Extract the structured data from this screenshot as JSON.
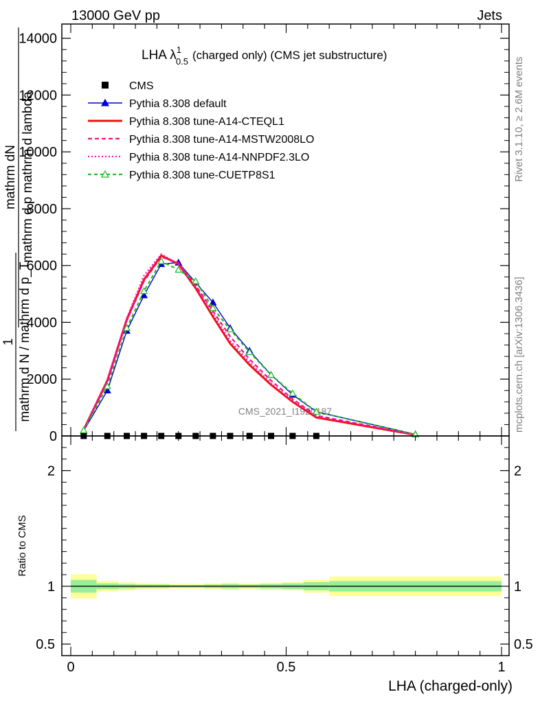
{
  "header": {
    "left": "13000 GeV pp",
    "right": "Jets"
  },
  "chart_data": [
    {
      "type": "line",
      "title": "LHA λ",
      "title_sup": "1",
      "title_sub": "0.5",
      "title_rest": "(charged only) (CMS jet substructure)",
      "ylabel_numerator": "mathrm dN",
      "ylabel_denominator": "mathrm d p mathrm d lambda",
      "ylabel_prefix": "1",
      "ylabel_prefix_denominator": "mathrm d N / mathrm d p_T",
      "xlim": [
        0,
        1
      ],
      "ylim": [
        0,
        14500
      ],
      "yticks": [
        0,
        2000,
        4000,
        6000,
        8000,
        10000,
        12000,
        14000
      ],
      "ytick_labels": [
        "0",
        "2000",
        "4000",
        "6000",
        "8000",
        "10000",
        "12000",
        "14000"
      ],
      "watermark": "CMS_2021_I1920187",
      "legend_position": "top-left",
      "series": [
        {
          "name": "CMS",
          "color": "#000000",
          "style": "data-points",
          "x": [
            0.03,
            0.085,
            0.13,
            0.17,
            0.21,
            0.25,
            0.29,
            0.33,
            0.37,
            0.415,
            0.465,
            0.515,
            0.57
          ],
          "y": [
            0,
            0,
            0,
            0,
            0,
            0,
            0,
            0,
            0,
            0,
            0,
            0,
            0
          ]
        },
        {
          "name": "Pythia 8.308 default",
          "color": "#0000cc",
          "style": "solid-triangle",
          "x": [
            0.03,
            0.085,
            0.13,
            0.17,
            0.21,
            0.25,
            0.29,
            0.33,
            0.37,
            0.415,
            0.465,
            0.515,
            0.57,
            0.8
          ],
          "y": [
            180,
            1600,
            3700,
            4950,
            6050,
            6100,
            5400,
            4700,
            3800,
            3000,
            2150,
            1450,
            850,
            60
          ]
        },
        {
          "name": "Pythia 8.308 tune-A14-CTEQL1",
          "color": "#ee1111",
          "style": "solid",
          "x": [
            0.03,
            0.085,
            0.13,
            0.17,
            0.21,
            0.25,
            0.29,
            0.33,
            0.37,
            0.415,
            0.465,
            0.515,
            0.57,
            0.8
          ],
          "y": [
            220,
            1950,
            4100,
            5500,
            6350,
            6050,
            5200,
            4200,
            3250,
            2500,
            1800,
            1200,
            650,
            40
          ]
        },
        {
          "name": "Pythia 8.308 tune-A14-MSTW2008LO",
          "color": "#ee1177",
          "style": "dashed",
          "x": [
            0.03,
            0.085,
            0.13,
            0.17,
            0.21,
            0.25,
            0.29,
            0.33,
            0.37,
            0.415,
            0.465,
            0.515,
            0.57,
            0.8
          ],
          "y": [
            210,
            1900,
            4050,
            5450,
            6300,
            6100,
            5300,
            4400,
            3500,
            2700,
            1950,
            1300,
            720,
            45
          ]
        },
        {
          "name": "Pythia 8.308 tune-A14-NNPDF2.3LO",
          "color": "#ff11cc",
          "style": "dotted",
          "x": [
            0.03,
            0.085,
            0.13,
            0.17,
            0.21,
            0.25,
            0.29,
            0.33,
            0.37,
            0.415,
            0.465,
            0.515,
            0.57,
            0.8
          ],
          "y": [
            230,
            2000,
            4150,
            5650,
            6400,
            6050,
            5250,
            4300,
            3350,
            2600,
            1850,
            1250,
            690,
            42
          ]
        },
        {
          "name": "Pythia 8.308 tune-CUETP8S1",
          "color": "#22bb22",
          "style": "dashed-open-triangle",
          "x": [
            0.03,
            0.085,
            0.13,
            0.17,
            0.21,
            0.25,
            0.29,
            0.33,
            0.37,
            0.415,
            0.465,
            0.515,
            0.57,
            0.8
          ],
          "y": [
            200,
            1750,
            3800,
            5100,
            6150,
            5850,
            5450,
            4500,
            3750,
            2950,
            2150,
            1500,
            850,
            55
          ]
        }
      ]
    },
    {
      "type": "area",
      "ylabel": "Ratio to CMS",
      "xlabel": "LHA (charged-only)",
      "xlim": [
        0,
        1
      ],
      "ylim": [
        0.4,
        2.3
      ],
      "yticks": [
        0.5,
        1,
        2
      ],
      "ytick_labels": [
        "0.5",
        "1",
        "2"
      ],
      "xticks": [
        0,
        0.5,
        1
      ],
      "xtick_labels": [
        "0",
        "0.5",
        "1"
      ],
      "reference_line": 1,
      "bin_edges": [
        0.0,
        0.06,
        0.11,
        0.15,
        0.19,
        0.23,
        0.27,
        0.31,
        0.35,
        0.39,
        0.44,
        0.49,
        0.54,
        0.6,
        1.0
      ],
      "band_inner": [
        [
          0.945,
          1.055
        ],
        [
          0.975,
          1.025
        ],
        [
          0.98,
          1.02
        ],
        [
          0.985,
          1.015
        ],
        [
          0.985,
          1.015
        ],
        [
          0.99,
          1.01
        ],
        [
          0.99,
          1.01
        ],
        [
          0.985,
          1.015
        ],
        [
          0.98,
          1.02
        ],
        [
          0.985,
          1.015
        ],
        [
          0.98,
          1.02
        ],
        [
          0.975,
          1.025
        ],
        [
          0.965,
          1.035
        ],
        [
          0.955,
          1.045
        ]
      ],
      "band_outer": [
        [
          0.895,
          1.105
        ],
        [
          0.955,
          1.045
        ],
        [
          0.965,
          1.035
        ],
        [
          0.975,
          1.025
        ],
        [
          0.975,
          1.025
        ],
        [
          0.98,
          1.02
        ],
        [
          0.98,
          1.02
        ],
        [
          0.975,
          1.025
        ],
        [
          0.97,
          1.03
        ],
        [
          0.975,
          1.025
        ],
        [
          0.97,
          1.03
        ],
        [
          0.965,
          1.035
        ],
        [
          0.945,
          1.055
        ],
        [
          0.915,
          1.085
        ]
      ],
      "band_colors": {
        "inner": "#99ee99",
        "outer": "#ffff99"
      }
    }
  ],
  "side_labels": {
    "rivet": "Rivet 3.1.10, ≥ 2.6M events",
    "mcplots": "mcplots.cern.ch [arXiv:1306.3436]"
  }
}
